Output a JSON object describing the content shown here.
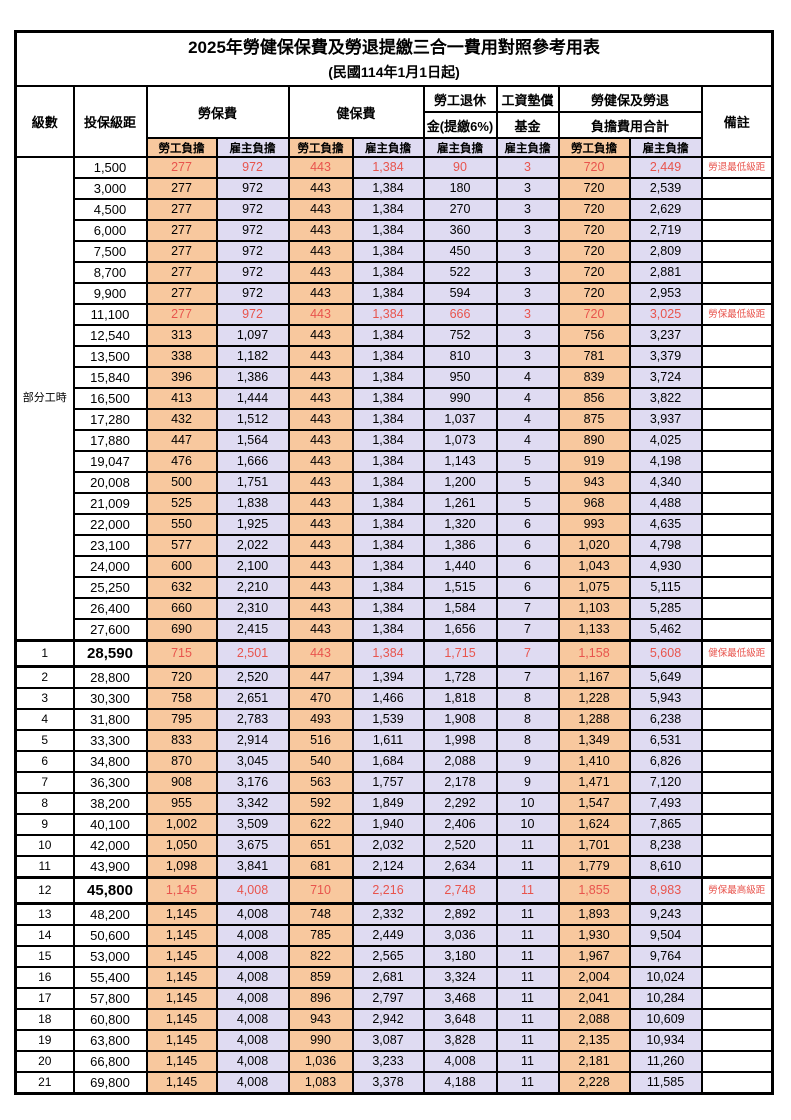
{
  "title": "2025年勞健保保費及勞退提繳三合一費用對照參考用表",
  "subtitle": "(民國114年1月1日起)",
  "colors": {
    "employee_bg": "#f8c89e",
    "employer_bg": "#dfdbf2",
    "highlight_text": "#e8544d",
    "border": "#000000"
  },
  "header": {
    "level": "級數",
    "bracket": "投保級距",
    "labor_insurance": "勞保費",
    "health_insurance": "健保費",
    "pension_line1": "勞工退休",
    "pension_line2": "金(提繳6%)",
    "wage_fund_line1": "工資墊償",
    "wage_fund_line2": "基金",
    "total_line1": "勞健保及勞退",
    "total_line2": "負擔費用合計",
    "note": "備註",
    "employee_label": "勞工負擔",
    "employer_label": "雇主負擔"
  },
  "part_time_label": "部分工時",
  "part_time_rowspan": 23,
  "rows": [
    {
      "level": "",
      "bracket": "1,500",
      "li_emp": "277",
      "li_er": "972",
      "hi_emp": "443",
      "hi_er": "1,384",
      "pension": "90",
      "fund": "3",
      "tot_emp": "720",
      "tot_er": "2,449",
      "note": "勞退最低級距",
      "highlight": true,
      "big": false
    },
    {
      "level": "",
      "bracket": "3,000",
      "li_emp": "277",
      "li_er": "972",
      "hi_emp": "443",
      "hi_er": "1,384",
      "pension": "180",
      "fund": "3",
      "tot_emp": "720",
      "tot_er": "2,539",
      "note": "",
      "highlight": false,
      "big": false
    },
    {
      "level": "",
      "bracket": "4,500",
      "li_emp": "277",
      "li_er": "972",
      "hi_emp": "443",
      "hi_er": "1,384",
      "pension": "270",
      "fund": "3",
      "tot_emp": "720",
      "tot_er": "2,629",
      "note": "",
      "highlight": false,
      "big": false
    },
    {
      "level": "",
      "bracket": "6,000",
      "li_emp": "277",
      "li_er": "972",
      "hi_emp": "443",
      "hi_er": "1,384",
      "pension": "360",
      "fund": "3",
      "tot_emp": "720",
      "tot_er": "2,719",
      "note": "",
      "highlight": false,
      "big": false
    },
    {
      "level": "",
      "bracket": "7,500",
      "li_emp": "277",
      "li_er": "972",
      "hi_emp": "443",
      "hi_er": "1,384",
      "pension": "450",
      "fund": "3",
      "tot_emp": "720",
      "tot_er": "2,809",
      "note": "",
      "highlight": false,
      "big": false
    },
    {
      "level": "",
      "bracket": "8,700",
      "li_emp": "277",
      "li_er": "972",
      "hi_emp": "443",
      "hi_er": "1,384",
      "pension": "522",
      "fund": "3",
      "tot_emp": "720",
      "tot_er": "2,881",
      "note": "",
      "highlight": false,
      "big": false
    },
    {
      "level": "",
      "bracket": "9,900",
      "li_emp": "277",
      "li_er": "972",
      "hi_emp": "443",
      "hi_er": "1,384",
      "pension": "594",
      "fund": "3",
      "tot_emp": "720",
      "tot_er": "2,953",
      "note": "",
      "highlight": false,
      "big": false
    },
    {
      "level": "",
      "bracket": "11,100",
      "li_emp": "277",
      "li_er": "972",
      "hi_emp": "443",
      "hi_er": "1,384",
      "pension": "666",
      "fund": "3",
      "tot_emp": "720",
      "tot_er": "3,025",
      "note": "勞保最低級距",
      "highlight": true,
      "big": false
    },
    {
      "level": "",
      "bracket": "12,540",
      "li_emp": "313",
      "li_er": "1,097",
      "hi_emp": "443",
      "hi_er": "1,384",
      "pension": "752",
      "fund": "3",
      "tot_emp": "756",
      "tot_er": "3,237",
      "note": "",
      "highlight": false,
      "big": false
    },
    {
      "level": "",
      "bracket": "13,500",
      "li_emp": "338",
      "li_er": "1,182",
      "hi_emp": "443",
      "hi_er": "1,384",
      "pension": "810",
      "fund": "3",
      "tot_emp": "781",
      "tot_er": "3,379",
      "note": "",
      "highlight": false,
      "big": false
    },
    {
      "level": "",
      "bracket": "15,840",
      "li_emp": "396",
      "li_er": "1,386",
      "hi_emp": "443",
      "hi_er": "1,384",
      "pension": "950",
      "fund": "4",
      "tot_emp": "839",
      "tot_er": "3,724",
      "note": "",
      "highlight": false,
      "big": false
    },
    {
      "level": "",
      "bracket": "16,500",
      "li_emp": "413",
      "li_er": "1,444",
      "hi_emp": "443",
      "hi_er": "1,384",
      "pension": "990",
      "fund": "4",
      "tot_emp": "856",
      "tot_er": "3,822",
      "note": "",
      "highlight": false,
      "big": false
    },
    {
      "level": "",
      "bracket": "17,280",
      "li_emp": "432",
      "li_er": "1,512",
      "hi_emp": "443",
      "hi_er": "1,384",
      "pension": "1,037",
      "fund": "4",
      "tot_emp": "875",
      "tot_er": "3,937",
      "note": "",
      "highlight": false,
      "big": false
    },
    {
      "level": "",
      "bracket": "17,880",
      "li_emp": "447",
      "li_er": "1,564",
      "hi_emp": "443",
      "hi_er": "1,384",
      "pension": "1,073",
      "fund": "4",
      "tot_emp": "890",
      "tot_er": "4,025",
      "note": "",
      "highlight": false,
      "big": false
    },
    {
      "level": "",
      "bracket": "19,047",
      "li_emp": "476",
      "li_er": "1,666",
      "hi_emp": "443",
      "hi_er": "1,384",
      "pension": "1,143",
      "fund": "5",
      "tot_emp": "919",
      "tot_er": "4,198",
      "note": "",
      "highlight": false,
      "big": false
    },
    {
      "level": "",
      "bracket": "20,008",
      "li_emp": "500",
      "li_er": "1,751",
      "hi_emp": "443",
      "hi_er": "1,384",
      "pension": "1,200",
      "fund": "5",
      "tot_emp": "943",
      "tot_er": "4,340",
      "note": "",
      "highlight": false,
      "big": false
    },
    {
      "level": "",
      "bracket": "21,009",
      "li_emp": "525",
      "li_er": "1,838",
      "hi_emp": "443",
      "hi_er": "1,384",
      "pension": "1,261",
      "fund": "5",
      "tot_emp": "968",
      "tot_er": "4,488",
      "note": "",
      "highlight": false,
      "big": false
    },
    {
      "level": "",
      "bracket": "22,000",
      "li_emp": "550",
      "li_er": "1,925",
      "hi_emp": "443",
      "hi_er": "1,384",
      "pension": "1,320",
      "fund": "6",
      "tot_emp": "993",
      "tot_er": "4,635",
      "note": "",
      "highlight": false,
      "big": false
    },
    {
      "level": "",
      "bracket": "23,100",
      "li_emp": "577",
      "li_er": "2,022",
      "hi_emp": "443",
      "hi_er": "1,384",
      "pension": "1,386",
      "fund": "6",
      "tot_emp": "1,020",
      "tot_er": "4,798",
      "note": "",
      "highlight": false,
      "big": false
    },
    {
      "level": "",
      "bracket": "24,000",
      "li_emp": "600",
      "li_er": "2,100",
      "hi_emp": "443",
      "hi_er": "1,384",
      "pension": "1,440",
      "fund": "6",
      "tot_emp": "1,043",
      "tot_er": "4,930",
      "note": "",
      "highlight": false,
      "big": false
    },
    {
      "level": "",
      "bracket": "25,250",
      "li_emp": "632",
      "li_er": "2,210",
      "hi_emp": "443",
      "hi_er": "1,384",
      "pension": "1,515",
      "fund": "6",
      "tot_emp": "1,075",
      "tot_er": "5,115",
      "note": "",
      "highlight": false,
      "big": false
    },
    {
      "level": "",
      "bracket": "26,400",
      "li_emp": "660",
      "li_er": "2,310",
      "hi_emp": "443",
      "hi_er": "1,384",
      "pension": "1,584",
      "fund": "7",
      "tot_emp": "1,103",
      "tot_er": "5,285",
      "note": "",
      "highlight": false,
      "big": false
    },
    {
      "level": "",
      "bracket": "27,600",
      "li_emp": "690",
      "li_er": "2,415",
      "hi_emp": "443",
      "hi_er": "1,384",
      "pension": "1,656",
      "fund": "7",
      "tot_emp": "1,133",
      "tot_er": "5,462",
      "note": "",
      "highlight": false,
      "big": false
    },
    {
      "level": "1",
      "bracket": "28,590",
      "li_emp": "715",
      "li_er": "2,501",
      "hi_emp": "443",
      "hi_er": "1,384",
      "pension": "1,715",
      "fund": "7",
      "tot_emp": "1,158",
      "tot_er": "5,608",
      "note": "健保最低級距",
      "highlight": true,
      "big": true
    },
    {
      "level": "2",
      "bracket": "28,800",
      "li_emp": "720",
      "li_er": "2,520",
      "hi_emp": "447",
      "hi_er": "1,394",
      "pension": "1,728",
      "fund": "7",
      "tot_emp": "1,167",
      "tot_er": "5,649",
      "note": "",
      "highlight": false,
      "big": false
    },
    {
      "level": "3",
      "bracket": "30,300",
      "li_emp": "758",
      "li_er": "2,651",
      "hi_emp": "470",
      "hi_er": "1,466",
      "pension": "1,818",
      "fund": "8",
      "tot_emp": "1,228",
      "tot_er": "5,943",
      "note": "",
      "highlight": false,
      "big": false
    },
    {
      "level": "4",
      "bracket": "31,800",
      "li_emp": "795",
      "li_er": "2,783",
      "hi_emp": "493",
      "hi_er": "1,539",
      "pension": "1,908",
      "fund": "8",
      "tot_emp": "1,288",
      "tot_er": "6,238",
      "note": "",
      "highlight": false,
      "big": false
    },
    {
      "level": "5",
      "bracket": "33,300",
      "li_emp": "833",
      "li_er": "2,914",
      "hi_emp": "516",
      "hi_er": "1,611",
      "pension": "1,998",
      "fund": "8",
      "tot_emp": "1,349",
      "tot_er": "6,531",
      "note": "",
      "highlight": false,
      "big": false
    },
    {
      "level": "6",
      "bracket": "34,800",
      "li_emp": "870",
      "li_er": "3,045",
      "hi_emp": "540",
      "hi_er": "1,684",
      "pension": "2,088",
      "fund": "9",
      "tot_emp": "1,410",
      "tot_er": "6,826",
      "note": "",
      "highlight": false,
      "big": false
    },
    {
      "level": "7",
      "bracket": "36,300",
      "li_emp": "908",
      "li_er": "3,176",
      "hi_emp": "563",
      "hi_er": "1,757",
      "pension": "2,178",
      "fund": "9",
      "tot_emp": "1,471",
      "tot_er": "7,120",
      "note": "",
      "highlight": false,
      "big": false
    },
    {
      "level": "8",
      "bracket": "38,200",
      "li_emp": "955",
      "li_er": "3,342",
      "hi_emp": "592",
      "hi_er": "1,849",
      "pension": "2,292",
      "fund": "10",
      "tot_emp": "1,547",
      "tot_er": "7,493",
      "note": "",
      "highlight": false,
      "big": false
    },
    {
      "level": "9",
      "bracket": "40,100",
      "li_emp": "1,002",
      "li_er": "3,509",
      "hi_emp": "622",
      "hi_er": "1,940",
      "pension": "2,406",
      "fund": "10",
      "tot_emp": "1,624",
      "tot_er": "7,865",
      "note": "",
      "highlight": false,
      "big": false
    },
    {
      "level": "10",
      "bracket": "42,000",
      "li_emp": "1,050",
      "li_er": "3,675",
      "hi_emp": "651",
      "hi_er": "2,032",
      "pension": "2,520",
      "fund": "11",
      "tot_emp": "1,701",
      "tot_er": "8,238",
      "note": "",
      "highlight": false,
      "big": false
    },
    {
      "level": "11",
      "bracket": "43,900",
      "li_emp": "1,098",
      "li_er": "3,841",
      "hi_emp": "681",
      "hi_er": "2,124",
      "pension": "2,634",
      "fund": "11",
      "tot_emp": "1,779",
      "tot_er": "8,610",
      "note": "",
      "highlight": false,
      "big": false
    },
    {
      "level": "12",
      "bracket": "45,800",
      "li_emp": "1,145",
      "li_er": "4,008",
      "hi_emp": "710",
      "hi_er": "2,216",
      "pension": "2,748",
      "fund": "11",
      "tot_emp": "1,855",
      "tot_er": "8,983",
      "note": "勞保最高級距",
      "highlight": true,
      "big": true
    },
    {
      "level": "13",
      "bracket": "48,200",
      "li_emp": "1,145",
      "li_er": "4,008",
      "hi_emp": "748",
      "hi_er": "2,332",
      "pension": "2,892",
      "fund": "11",
      "tot_emp": "1,893",
      "tot_er": "9,243",
      "note": "",
      "highlight": false,
      "big": false
    },
    {
      "level": "14",
      "bracket": "50,600",
      "li_emp": "1,145",
      "li_er": "4,008",
      "hi_emp": "785",
      "hi_er": "2,449",
      "pension": "3,036",
      "fund": "11",
      "tot_emp": "1,930",
      "tot_er": "9,504",
      "note": "",
      "highlight": false,
      "big": false
    },
    {
      "level": "15",
      "bracket": "53,000",
      "li_emp": "1,145",
      "li_er": "4,008",
      "hi_emp": "822",
      "hi_er": "2,565",
      "pension": "3,180",
      "fund": "11",
      "tot_emp": "1,967",
      "tot_er": "9,764",
      "note": "",
      "highlight": false,
      "big": false
    },
    {
      "level": "16",
      "bracket": "55,400",
      "li_emp": "1,145",
      "li_er": "4,008",
      "hi_emp": "859",
      "hi_er": "2,681",
      "pension": "3,324",
      "fund": "11",
      "tot_emp": "2,004",
      "tot_er": "10,024",
      "note": "",
      "highlight": false,
      "big": false
    },
    {
      "level": "17",
      "bracket": "57,800",
      "li_emp": "1,145",
      "li_er": "4,008",
      "hi_emp": "896",
      "hi_er": "2,797",
      "pension": "3,468",
      "fund": "11",
      "tot_emp": "2,041",
      "tot_er": "10,284",
      "note": "",
      "highlight": false,
      "big": false
    },
    {
      "level": "18",
      "bracket": "60,800",
      "li_emp": "1,145",
      "li_er": "4,008",
      "hi_emp": "943",
      "hi_er": "2,942",
      "pension": "3,648",
      "fund": "11",
      "tot_emp": "2,088",
      "tot_er": "10,609",
      "note": "",
      "highlight": false,
      "big": false
    },
    {
      "level": "19",
      "bracket": "63,800",
      "li_emp": "1,145",
      "li_er": "4,008",
      "hi_emp": "990",
      "hi_er": "3,087",
      "pension": "3,828",
      "fund": "11",
      "tot_emp": "2,135",
      "tot_er": "10,934",
      "note": "",
      "highlight": false,
      "big": false
    },
    {
      "level": "20",
      "bracket": "66,800",
      "li_emp": "1,145",
      "li_er": "4,008",
      "hi_emp": "1,036",
      "hi_er": "3,233",
      "pension": "4,008",
      "fund": "11",
      "tot_emp": "2,181",
      "tot_er": "11,260",
      "note": "",
      "highlight": false,
      "big": false
    },
    {
      "level": "21",
      "bracket": "69,800",
      "li_emp": "1,145",
      "li_er": "4,008",
      "hi_emp": "1,083",
      "hi_er": "3,378",
      "pension": "4,188",
      "fund": "11",
      "tot_emp": "2,228",
      "tot_er": "11,585",
      "note": "",
      "highlight": false,
      "big": false
    }
  ]
}
